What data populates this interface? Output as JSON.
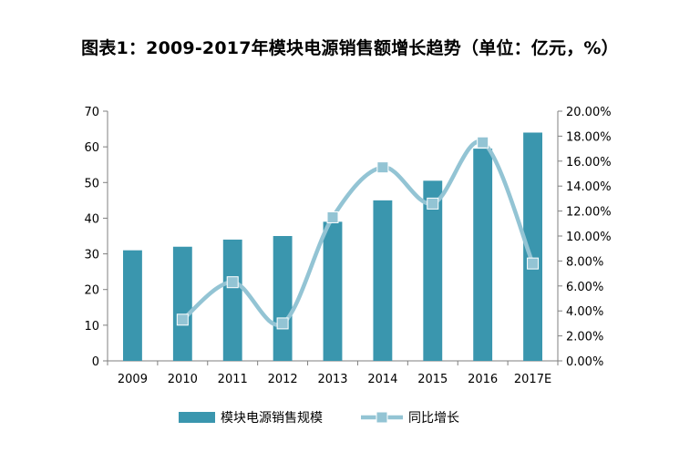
{
  "title": "图表1：2009-2017年模块电源销售额增长趋势（单位：亿元，%）",
  "chart_data": {
    "type": "bar",
    "categories": [
      "2009",
      "2010",
      "2011",
      "2012",
      "2013",
      "2014",
      "2015",
      "2016",
      "2017E"
    ],
    "series": [
      {
        "name": "模块电源销售规模",
        "type": "bar",
        "axis": "left",
        "color": "#3a96ae",
        "values": [
          31,
          32,
          34,
          35,
          39,
          45,
          50.5,
          59.5,
          64
        ]
      },
      {
        "name": "同比增长",
        "type": "line",
        "axis": "right",
        "color": "#93c4d4",
        "marker": "square",
        "values": [
          null,
          3.3,
          6.3,
          3.0,
          11.5,
          15.5,
          12.6,
          17.5,
          7.8
        ]
      }
    ],
    "y_left": {
      "ylim": [
        0,
        70
      ],
      "ticks": [
        "0",
        "10",
        "20",
        "30",
        "40",
        "50",
        "60",
        "70"
      ]
    },
    "y_right": {
      "ylim": [
        0,
        20
      ],
      "ticks": [
        "0.00%",
        "2.00%",
        "4.00%",
        "6.00%",
        "8.00%",
        "10.00%",
        "12.00%",
        "14.00%",
        "16.00%",
        "18.00%",
        "20.00%"
      ]
    },
    "grid": false,
    "legend": "bottom"
  }
}
